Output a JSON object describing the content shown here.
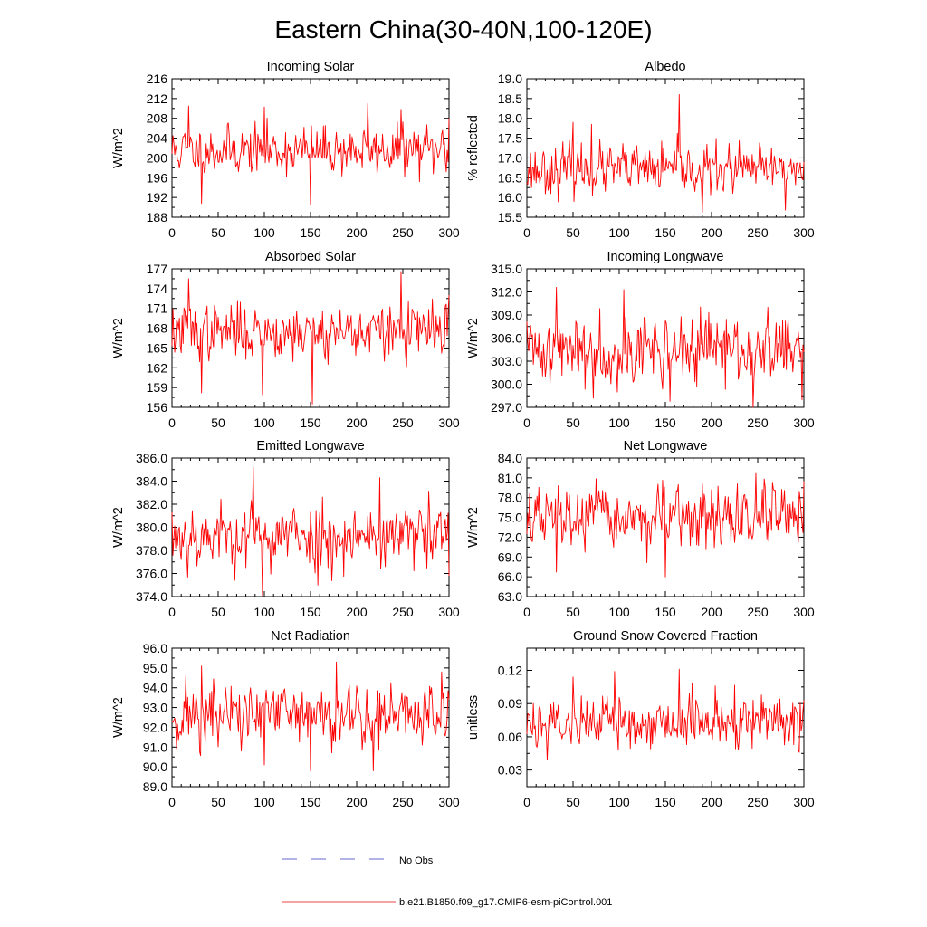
{
  "figure": {
    "title": "Eastern China(30-40N,100-120E)"
  },
  "legend": {
    "entries": [
      {
        "label": "No Obs",
        "color": "#6666cc",
        "style": "dashed"
      },
      {
        "label": "b.e21.B1850.f09_g17.CMIP6-esm-piControl.001",
        "color": "#ee4444",
        "style": "solid"
      }
    ]
  },
  "colors": {
    "series": "#ff0000",
    "frame": "#000000"
  },
  "chart_data": [
    {
      "type": "line",
      "title": "Incoming Solar",
      "xlabel": "",
      "ylabel": "W/m^2",
      "xlim": [
        0,
        300
      ],
      "ylim": [
        188,
        216
      ],
      "xticks": [
        0,
        50,
        100,
        150,
        200,
        250,
        300
      ],
      "yticks": [
        188,
        192,
        196,
        200,
        204,
        208,
        212,
        216
      ],
      "ytick_labels": [
        "188",
        "192",
        "196",
        "200",
        "204",
        "208",
        "212",
        "216"
      ],
      "series": [
        {
          "name": "b.e21.B1850.f09_g17.CMIP6-esm-piControl.001",
          "mean": 201.5,
          "sd": 2.4,
          "seed": 11,
          "x_range": [
            0,
            300
          ],
          "extremes": [
            [
              18,
              210.5
            ],
            [
              32,
              190.8
            ],
            [
              100,
              210.3
            ],
            [
              150,
              190.5
            ],
            [
              212,
              211.0
            ],
            [
              248,
              209.8
            ],
            [
              300,
              208.0
            ]
          ]
        }
      ]
    },
    {
      "type": "line",
      "title": "Albedo",
      "xlabel": "",
      "ylabel": "% reflected",
      "xlim": [
        0,
        300
      ],
      "ylim": [
        15.5,
        19.0
      ],
      "xticks": [
        0,
        50,
        100,
        150,
        200,
        250,
        300
      ],
      "yticks": [
        15.5,
        16.0,
        16.5,
        17.0,
        17.5,
        18.0,
        18.5,
        19.0
      ],
      "ytick_labels": [
        "15.5",
        "16.0",
        "16.5",
        "17.0",
        "17.5",
        "18.0",
        "18.5",
        "19.0"
      ],
      "series": [
        {
          "name": "b.e21.B1850.f09_g17.CMIP6-esm-piControl.001",
          "mean": 16.7,
          "sd": 0.3,
          "seed": 23,
          "x_range": [
            0,
            300
          ],
          "extremes": [
            [
              50,
              17.9
            ],
            [
              70,
              17.85
            ],
            [
              165,
              18.6
            ],
            [
              190,
              15.62
            ],
            [
              280,
              15.68
            ],
            [
              300,
              16.9
            ]
          ]
        }
      ]
    },
    {
      "type": "line",
      "title": "Absorbed Solar",
      "xlabel": "",
      "ylabel": "W/m^2",
      "xlim": [
        0,
        300
      ],
      "ylim": [
        156,
        177
      ],
      "xticks": [
        0,
        50,
        100,
        150,
        200,
        250,
        300
      ],
      "yticks": [
        156,
        159,
        162,
        165,
        168,
        171,
        174,
        177
      ],
      "ytick_labels": [
        "156",
        "159",
        "162",
        "165",
        "168",
        "171",
        "174",
        "177"
      ],
      "series": [
        {
          "name": "b.e21.B1850.f09_g17.CMIP6-esm-piControl.001",
          "mean": 167.5,
          "sd": 2.0,
          "seed": 37,
          "x_range": [
            0,
            300
          ],
          "extremes": [
            [
              18,
              175.5
            ],
            [
              32,
              158.2
            ],
            [
              98,
              157.9
            ],
            [
              152,
              156.5
            ],
            [
              248,
              176.6
            ],
            [
              300,
              173.0
            ]
          ]
        }
      ]
    },
    {
      "type": "line",
      "title": "Incoming Longwave",
      "xlabel": "",
      "ylabel": "W/m^2",
      "xlim": [
        0,
        300
      ],
      "ylim": [
        297.0,
        315.0
      ],
      "xticks": [
        0,
        50,
        100,
        150,
        200,
        250,
        300
      ],
      "yticks": [
        297.0,
        300.0,
        303.0,
        306.0,
        309.0,
        312.0,
        315.0
      ],
      "ytick_labels": [
        "297.0",
        "300.0",
        "303.0",
        "306.0",
        "309.0",
        "312.0",
        "315.0"
      ],
      "series": [
        {
          "name": "b.e21.B1850.f09_g17.CMIP6-esm-piControl.001",
          "mean": 304.5,
          "sd": 2.2,
          "seed": 41,
          "x_range": [
            0,
            300
          ],
          "extremes": [
            [
              32,
              312.6
            ],
            [
              72,
              298.2
            ],
            [
              105,
              312.3
            ],
            [
              155,
              297.8
            ],
            [
              245,
              297.0
            ],
            [
              298,
              298.0
            ]
          ]
        }
      ]
    },
    {
      "type": "line",
      "title": "Emitted Longwave",
      "xlabel": "",
      "ylabel": "W/m^2",
      "xlim": [
        0,
        300
      ],
      "ylim": [
        374.0,
        386.0
      ],
      "xticks": [
        0,
        50,
        100,
        150,
        200,
        250,
        300
      ],
      "yticks": [
        374.0,
        376.0,
        378.0,
        380.0,
        382.0,
        384.0,
        386.0
      ],
      "ytick_labels": [
        "374.0",
        "376.0",
        "378.0",
        "380.0",
        "382.0",
        "384.0",
        "386.0"
      ],
      "series": [
        {
          "name": "b.e21.B1850.f09_g17.CMIP6-esm-piControl.001",
          "mean": 379.3,
          "sd": 1.4,
          "seed": 53,
          "x_range": [
            0,
            300
          ],
          "extremes": [
            [
              88,
              385.2
            ],
            [
              98,
              374.1
            ],
            [
              158,
              375.0
            ],
            [
              225,
              384.3
            ],
            [
              300,
              375.8
            ]
          ]
        }
      ]
    },
    {
      "type": "line",
      "title": "Net Longwave",
      "xlabel": "",
      "ylabel": "W/m^2",
      "xlim": [
        0,
        300
      ],
      "ylim": [
        63.0,
        84.0
      ],
      "xticks": [
        0,
        50,
        100,
        150,
        200,
        250,
        300
      ],
      "yticks": [
        63.0,
        66.0,
        69.0,
        72.0,
        75.0,
        78.0,
        81.0,
        84.0
      ],
      "ytick_labels": [
        "63.0",
        "66.0",
        "69.0",
        "72.0",
        "75.0",
        "78.0",
        "81.0",
        "84.0"
      ],
      "series": [
        {
          "name": "b.e21.B1850.f09_g17.CMIP6-esm-piControl.001",
          "mean": 74.8,
          "sd": 2.3,
          "seed": 67,
          "x_range": [
            0,
            300
          ],
          "extremes": [
            [
              32,
              66.7
            ],
            [
              150,
              66.0
            ],
            [
              248,
              81.8
            ],
            [
              300,
              80.5
            ]
          ]
        }
      ]
    },
    {
      "type": "line",
      "title": "Net Radiation",
      "xlabel": "",
      "ylabel": "W/m^2",
      "xlim": [
        0,
        300
      ],
      "ylim": [
        89.0,
        96.0
      ],
      "xticks": [
        0,
        50,
        100,
        150,
        200,
        250,
        300
      ],
      "yticks": [
        89.0,
        90.0,
        91.0,
        92.0,
        93.0,
        94.0,
        95.0,
        96.0
      ],
      "ytick_labels": [
        "89.0",
        "90.0",
        "91.0",
        "92.0",
        "93.0",
        "94.0",
        "95.0",
        "96.0"
      ],
      "series": [
        {
          "name": "b.e21.B1850.f09_g17.CMIP6-esm-piControl.001",
          "mean": 92.6,
          "sd": 0.85,
          "seed": 71,
          "x_range": [
            0,
            300
          ],
          "extremes": [
            [
              32,
              95.1
            ],
            [
              100,
              90.1
            ],
            [
              150,
              89.8
            ],
            [
              178,
              95.3
            ],
            [
              218,
              89.8
            ],
            [
              292,
              94.8
            ]
          ]
        }
      ]
    },
    {
      "type": "line",
      "title": "Ground Snow Covered Fraction",
      "xlabel": "",
      "ylabel": "unitless",
      "xlim": [
        0,
        300
      ],
      "ylim": [
        0.015,
        0.14
      ],
      "xticks": [
        0,
        50,
        100,
        150,
        200,
        250,
        300
      ],
      "yticks": [
        0.03,
        0.06,
        0.09,
        0.12
      ],
      "ytick_labels": [
        "0.03",
        "0.06",
        "0.09",
        "0.12"
      ],
      "series": [
        {
          "name": "b.e21.B1850.f09_g17.CMIP6-esm-piControl.001",
          "mean": 0.074,
          "sd": 0.012,
          "seed": 89,
          "x_range": [
            0,
            300
          ],
          "extremes": [
            [
              22,
              0.039
            ],
            [
              50,
              0.114
            ],
            [
              95,
              0.119
            ],
            [
              165,
              0.121
            ],
            [
              295,
              0.046
            ],
            [
              300,
              0.093
            ]
          ]
        }
      ]
    }
  ]
}
